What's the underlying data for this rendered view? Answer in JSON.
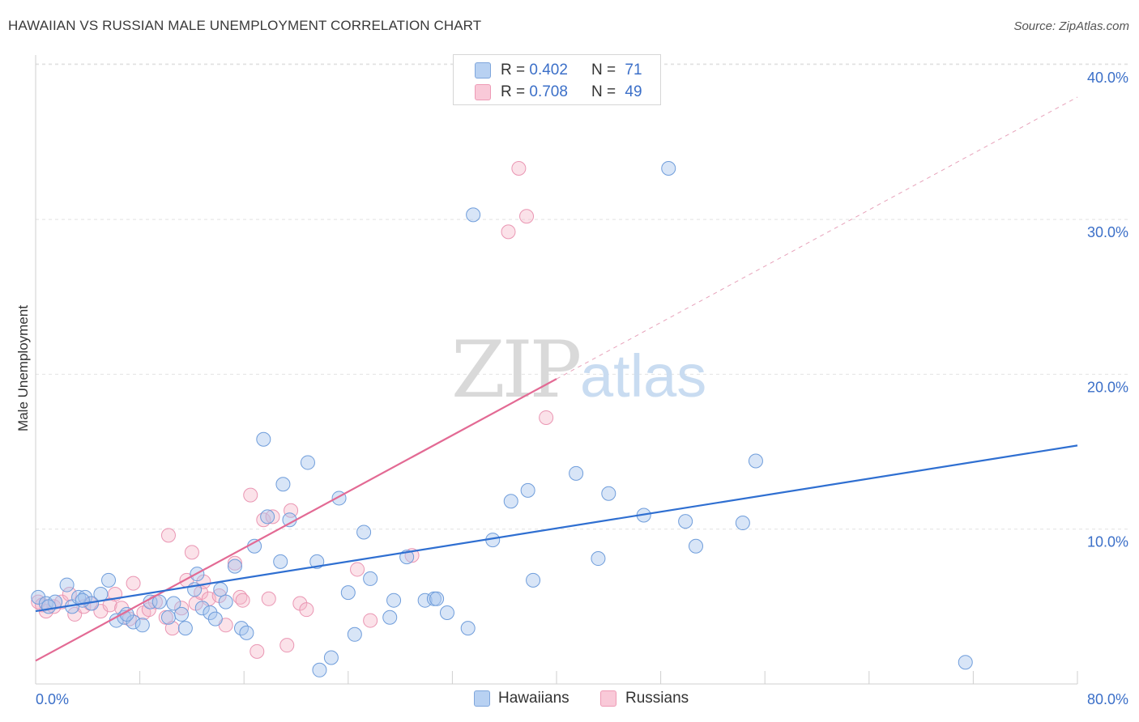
{
  "title": "HAWAIIAN VS RUSSIAN MALE UNEMPLOYMENT CORRELATION CHART",
  "source": "Source: ZipAtlas.com",
  "watermark": {
    "zip": "ZIP",
    "atlas": "atlas"
  },
  "legend_top": {
    "rows": [
      {
        "r_label": "R = ",
        "r_value": "0.402",
        "n_label": "N = ",
        "n_value": "71"
      },
      {
        "r_label": "R = ",
        "r_value": "0.708",
        "n_label": "N = ",
        "n_value": "49"
      }
    ]
  },
  "legend_bottom": {
    "items": [
      "Hawaiians",
      "Russians"
    ]
  },
  "chart_data": {
    "type": "scatter",
    "title": "HAWAIIAN VS RUSSIAN MALE UNEMPLOYMENT CORRELATION CHART",
    "xlabel": "",
    "ylabel": "Male Unemployment",
    "xlim": [
      0,
      80
    ],
    "ylim": [
      0,
      42
    ],
    "x_tick_labels": [
      "0.0%",
      "80.0%"
    ],
    "y_ticks": [
      10,
      20,
      30,
      40
    ],
    "y_tick_labels": [
      "10.0%",
      "20.0%",
      "30.0%",
      "40.0%"
    ],
    "grid": "horizontal dashed",
    "legend": "top-center and bottom-center",
    "colors": {
      "Hawaiians": "#a9c6ee",
      "Russians": "#f4b6c9",
      "hawaiians_line": "#2f6fd1",
      "russians_line": "#e36a94"
    },
    "series": [
      {
        "name": "Hawaiians",
        "r": 0.402,
        "n": 71,
        "trend": {
          "x": [
            0,
            80
          ],
          "y": [
            4.7,
            15.4
          ]
        },
        "points": [
          [
            0.2,
            5.6
          ],
          [
            0.8,
            5.2
          ],
          [
            1.5,
            5.3
          ],
          [
            2.4,
            6.4
          ],
          [
            2.8,
            5.0
          ],
          [
            3.3,
            5.6
          ],
          [
            3.8,
            5.6
          ],
          [
            4.3,
            5.2
          ],
          [
            5.0,
            5.8
          ],
          [
            5.6,
            6.7
          ],
          [
            6.2,
            4.1
          ],
          [
            6.8,
            4.3
          ],
          [
            7.5,
            4.0
          ],
          [
            8.2,
            3.8
          ],
          [
            8.8,
            5.3
          ],
          [
            9.5,
            5.3
          ],
          [
            10.2,
            4.3
          ],
          [
            10.6,
            5.2
          ],
          [
            11.2,
            4.5
          ],
          [
            11.5,
            3.6
          ],
          [
            12.2,
            6.1
          ],
          [
            12.4,
            7.1
          ],
          [
            12.8,
            4.9
          ],
          [
            13.4,
            4.6
          ],
          [
            13.8,
            4.2
          ],
          [
            14.2,
            6.1
          ],
          [
            14.6,
            5.3
          ],
          [
            15.3,
            7.6
          ],
          [
            15.8,
            3.6
          ],
          [
            16.2,
            3.3
          ],
          [
            16.8,
            8.9
          ],
          [
            17.5,
            15.8
          ],
          [
            17.8,
            10.8
          ],
          [
            18.8,
            7.9
          ],
          [
            19.0,
            12.9
          ],
          [
            19.5,
            10.6
          ],
          [
            20.9,
            14.3
          ],
          [
            21.6,
            7.9
          ],
          [
            21.8,
            0.9
          ],
          [
            22.7,
            1.7
          ],
          [
            23.3,
            12.0
          ],
          [
            24.0,
            5.9
          ],
          [
            24.5,
            3.2
          ],
          [
            25.2,
            9.8
          ],
          [
            25.7,
            6.8
          ],
          [
            27.2,
            4.3
          ],
          [
            27.5,
            5.4
          ],
          [
            28.5,
            8.2
          ],
          [
            29.9,
            5.4
          ],
          [
            30.6,
            5.5
          ],
          [
            30.8,
            5.5
          ],
          [
            31.6,
            4.6
          ],
          [
            33.2,
            3.6
          ],
          [
            33.6,
            30.3
          ],
          [
            35.1,
            9.3
          ],
          [
            36.5,
            11.8
          ],
          [
            37.8,
            12.5
          ],
          [
            38.2,
            6.7
          ],
          [
            41.5,
            13.6
          ],
          [
            43.2,
            8.1
          ],
          [
            44.0,
            12.3
          ],
          [
            46.7,
            10.9
          ],
          [
            48.6,
            33.3
          ],
          [
            49.9,
            10.5
          ],
          [
            50.7,
            8.9
          ],
          [
            54.3,
            10.4
          ],
          [
            55.3,
            14.4
          ],
          [
            71.4,
            1.4
          ],
          [
            3.6,
            5.4
          ],
          [
            7.0,
            4.5
          ],
          [
            1.0,
            5.0
          ]
        ]
      },
      {
        "name": "Russians",
        "r": 0.708,
        "n": 49,
        "trend": {
          "x": [
            0,
            40
          ],
          "y": [
            1.5,
            19.7
          ]
        },
        "trend_extension": {
          "x": [
            40,
            80
          ],
          "y": [
            19.7,
            37.9
          ]
        },
        "points": [
          [
            0.2,
            5.3
          ],
          [
            0.8,
            4.7
          ],
          [
            1.4,
            5.0
          ],
          [
            2.0,
            5.3
          ],
          [
            2.6,
            5.8
          ],
          [
            3.0,
            4.5
          ],
          [
            3.7,
            5.0
          ],
          [
            4.2,
            5.2
          ],
          [
            5.0,
            4.7
          ],
          [
            5.7,
            5.1
          ],
          [
            6.1,
            5.8
          ],
          [
            6.6,
            4.9
          ],
          [
            7.2,
            4.2
          ],
          [
            7.5,
            6.5
          ],
          [
            8.3,
            4.6
          ],
          [
            8.7,
            4.8
          ],
          [
            9.2,
            5.3
          ],
          [
            10.0,
            4.3
          ],
          [
            10.2,
            9.6
          ],
          [
            10.5,
            3.6
          ],
          [
            11.2,
            4.9
          ],
          [
            11.6,
            6.7
          ],
          [
            12.0,
            8.5
          ],
          [
            12.3,
            5.2
          ],
          [
            12.7,
            5.9
          ],
          [
            12.9,
            6.6
          ],
          [
            13.3,
            5.5
          ],
          [
            14.1,
            5.7
          ],
          [
            14.6,
            3.8
          ],
          [
            15.3,
            7.8
          ],
          [
            15.7,
            5.6
          ],
          [
            15.9,
            5.4
          ],
          [
            16.5,
            12.2
          ],
          [
            17.0,
            2.1
          ],
          [
            17.5,
            10.6
          ],
          [
            17.9,
            5.5
          ],
          [
            18.2,
            10.8
          ],
          [
            19.3,
            2.5
          ],
          [
            19.6,
            11.2
          ],
          [
            20.3,
            5.2
          ],
          [
            20.8,
            4.8
          ],
          [
            24.7,
            7.4
          ],
          [
            25.7,
            4.1
          ],
          [
            28.9,
            8.3
          ],
          [
            36.3,
            29.2
          ],
          [
            37.1,
            33.3
          ],
          [
            37.7,
            30.2
          ],
          [
            39.2,
            17.2
          ],
          [
            0.5,
            5.1
          ]
        ]
      }
    ]
  }
}
